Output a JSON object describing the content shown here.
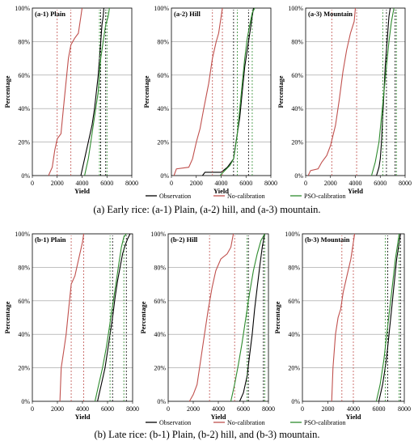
{
  "figure": {
    "caption_a": "(a) Early rice: (a-1) Plain, (a-2) hill, and (a-3) mountain.",
    "caption_b": "(b) Late rice: (b-1) Plain, (b-2) hill, and (b-3) mountain.",
    "legend": [
      {
        "label": "Observation",
        "color": "#000000"
      },
      {
        "label": "No-calibration",
        "color": "#c0504d"
      },
      {
        "label": "PSO-calibration",
        "color": "#2e8b2e"
      }
    ]
  },
  "chart_data": [
    {
      "type": "line",
      "title": "(a-1) Plain",
      "xlabel": "Yield",
      "ylabel": "Percentage",
      "xlim": [
        0,
        8000
      ],
      "ylim": [
        0,
        100
      ],
      "xticks": [
        "0",
        "2000",
        "4000",
        "6000",
        "8000"
      ],
      "yticks": [
        "0%",
        "20%",
        "40%",
        "60%",
        "80%",
        "100%"
      ],
      "series": [
        {
          "name": "Observation",
          "points": [
            [
              3900,
              0
            ],
            [
              4200,
              10
            ],
            [
              4500,
              20
            ],
            [
              4800,
              30
            ],
            [
              5000,
              40
            ],
            [
              5150,
              50
            ],
            [
              5300,
              60
            ],
            [
              5400,
              70
            ],
            [
              5500,
              80
            ],
            [
              5600,
              90
            ],
            [
              5700,
              95
            ],
            [
              5750,
              100
            ]
          ],
          "p20": 5500,
          "p80": 5900
        },
        {
          "name": "No-calibration",
          "points": [
            [
              1300,
              0
            ],
            [
              1600,
              5
            ],
            [
              1800,
              15
            ],
            [
              2000,
              22
            ],
            [
              2300,
              25
            ],
            [
              2500,
              40
            ],
            [
              2700,
              55
            ],
            [
              2900,
              70
            ],
            [
              3100,
              78
            ],
            [
              3400,
              82
            ],
            [
              3700,
              85
            ],
            [
              3900,
              95
            ],
            [
              4000,
              100
            ]
          ],
          "p20": 2000,
          "p80": 3100
        },
        {
          "name": "PSO-calibration",
          "points": [
            [
              4200,
              0
            ],
            [
              4500,
              10
            ],
            [
              4700,
              20
            ],
            [
              4900,
              30
            ],
            [
              5100,
              40
            ],
            [
              5300,
              50
            ],
            [
              5400,
              60
            ],
            [
              5500,
              70
            ],
            [
              5700,
              80
            ],
            [
              5900,
              90
            ],
            [
              6100,
              95
            ],
            [
              6200,
              100
            ]
          ],
          "p20": 5400,
          "p80": 6000
        }
      ]
    },
    {
      "type": "line",
      "title": "(a-2) Hill",
      "xlabel": "Yield",
      "ylabel": "Percentage",
      "xlim": [
        0,
        8000
      ],
      "ylim": [
        0,
        100
      ],
      "xticks": [
        "0",
        "2000",
        "4000",
        "6000",
        "8000"
      ],
      "yticks": [
        "0%",
        "20%",
        "40%",
        "60%",
        "80%",
        "100%"
      ],
      "series": [
        {
          "name": "Observation",
          "points": [
            [
              2500,
              0
            ],
            [
              2700,
              2
            ],
            [
              4000,
              2
            ],
            [
              4500,
              5
            ],
            [
              5000,
              10
            ],
            [
              5200,
              20
            ],
            [
              5500,
              35
            ],
            [
              5700,
              50
            ],
            [
              5900,
              65
            ],
            [
              6100,
              75
            ],
            [
              6300,
              85
            ],
            [
              6500,
              95
            ],
            [
              6600,
              100
            ]
          ],
          "p20": 5000,
          "p80": 6200
        },
        {
          "name": "No-calibration",
          "points": [
            [
              200,
              0
            ],
            [
              400,
              4
            ],
            [
              1400,
              5
            ],
            [
              1700,
              10
            ],
            [
              2000,
              20
            ],
            [
              2300,
              28
            ],
            [
              2600,
              40
            ],
            [
              3000,
              55
            ],
            [
              3300,
              70
            ],
            [
              3600,
              80
            ],
            [
              3800,
              85
            ],
            [
              4000,
              95
            ],
            [
              4100,
              100
            ]
          ],
          "p20": 3300,
          "p80": 4100
        },
        {
          "name": "PSO-calibration",
          "points": [
            [
              3900,
              0
            ],
            [
              4300,
              3
            ],
            [
              4700,
              6
            ],
            [
              5000,
              10
            ],
            [
              5300,
              25
            ],
            [
              5500,
              40
            ],
            [
              5700,
              55
            ],
            [
              5900,
              70
            ],
            [
              6100,
              82
            ],
            [
              6300,
              90
            ],
            [
              6500,
              97
            ],
            [
              6700,
              100
            ]
          ],
          "p20": 5300,
          "p80": 6500
        }
      ]
    },
    {
      "type": "line",
      "title": "(a-3) Mountain",
      "xlabel": "Yield",
      "ylabel": "Percentage",
      "xlim": [
        0,
        8000
      ],
      "ylim": [
        0,
        100
      ],
      "xticks": [
        "0",
        "2000",
        "4000",
        "6000",
        "8000"
      ],
      "yticks": [
        "0%",
        "20%",
        "40%",
        "60%",
        "80%",
        "100%"
      ],
      "series": [
        {
          "name": "Observation",
          "points": [
            [
              5700,
              0
            ],
            [
              5900,
              5
            ],
            [
              6000,
              10
            ],
            [
              6100,
              20
            ],
            [
              6200,
              35
            ],
            [
              6300,
              50
            ],
            [
              6400,
              65
            ],
            [
              6500,
              75
            ],
            [
              6600,
              85
            ],
            [
              6700,
              95
            ],
            [
              6800,
              100
            ]
          ],
          "p20": 6500,
          "p80": 7200
        },
        {
          "name": "No-calibration",
          "points": [
            [
              200,
              0
            ],
            [
              400,
              3
            ],
            [
              1000,
              4
            ],
            [
              1300,
              8
            ],
            [
              1700,
              12
            ],
            [
              2000,
              18
            ],
            [
              2400,
              30
            ],
            [
              2700,
              45
            ],
            [
              3000,
              62
            ],
            [
              3300,
              75
            ],
            [
              3600,
              85
            ],
            [
              3900,
              92
            ],
            [
              4000,
              100
            ]
          ],
          "p20": 2100,
          "p80": 4100
        },
        {
          "name": "PSO-calibration",
          "points": [
            [
              5300,
              0
            ],
            [
              5600,
              8
            ],
            [
              5900,
              20
            ],
            [
              6100,
              35
            ],
            [
              6300,
              50
            ],
            [
              6500,
              65
            ],
            [
              6700,
              80
            ],
            [
              6900,
              92
            ],
            [
              7100,
              100
            ]
          ],
          "p20": 6200,
          "p80": 7300
        }
      ]
    },
    {
      "type": "line",
      "title": "(b-1) Plain",
      "xlabel": "Yield",
      "ylabel": "Percentage",
      "xlim": [
        0,
        8000
      ],
      "ylim": [
        0,
        100
      ],
      "xticks": [
        "0",
        "2000",
        "4000",
        "6000",
        "8000"
      ],
      "yticks": [
        "0%",
        "20%",
        "40%",
        "60%",
        "80%",
        "100%"
      ],
      "series": [
        {
          "name": "Observation",
          "points": [
            [
              5200,
              0
            ],
            [
              5500,
              10
            ],
            [
              5800,
              20
            ],
            [
              6100,
              35
            ],
            [
              6400,
              50
            ],
            [
              6600,
              62
            ],
            [
              6800,
              72
            ],
            [
              7000,
              80
            ],
            [
              7200,
              88
            ],
            [
              7400,
              93
            ],
            [
              7600,
              97
            ],
            [
              7800,
              100
            ]
          ],
          "p20": 6400,
          "p80": 7500
        },
        {
          "name": "No-calibration",
          "points": [
            [
              2200,
              0
            ],
            [
              2300,
              20
            ],
            [
              2500,
              30
            ],
            [
              2700,
              40
            ],
            [
              2900,
              55
            ],
            [
              3100,
              70
            ],
            [
              3400,
              75
            ],
            [
              3700,
              85
            ],
            [
              4000,
              95
            ],
            [
              4100,
              100
            ]
          ],
          "p20": 3100,
          "p80": 4100
        },
        {
          "name": "PSO-calibration",
          "points": [
            [
              5000,
              0
            ],
            [
              5300,
              10
            ],
            [
              5600,
              20
            ],
            [
              5900,
              32
            ],
            [
              6100,
              42
            ],
            [
              6300,
              52
            ],
            [
              6500,
              62
            ],
            [
              6700,
              72
            ],
            [
              6900,
              82
            ],
            [
              7100,
              92
            ],
            [
              7300,
              98
            ],
            [
              7500,
              100
            ]
          ],
          "p20": 6200,
          "p80": 7300
        }
      ]
    },
    {
      "type": "line",
      "title": "(b-2) Hill",
      "xlabel": "Yield",
      "ylabel": "Percentage",
      "xlim": [
        0,
        8000
      ],
      "ylim": [
        0,
        100
      ],
      "xticks": [
        "0",
        "2000",
        "4000",
        "6000",
        "8000"
      ],
      "yticks": [
        "0%",
        "20%",
        "40%",
        "60%",
        "80%",
        "100%"
      ],
      "series": [
        {
          "name": "Observation",
          "points": [
            [
              5700,
              0
            ],
            [
              6000,
              5
            ],
            [
              6300,
              15
            ],
            [
              6500,
              28
            ],
            [
              6700,
              40
            ],
            [
              6900,
              55
            ],
            [
              7100,
              68
            ],
            [
              7300,
              80
            ],
            [
              7500,
              92
            ],
            [
              7700,
              100
            ]
          ],
          "p20": 6400,
          "p80": 7600
        },
        {
          "name": "No-calibration",
          "points": [
            [
              1700,
              0
            ],
            [
              2000,
              4
            ],
            [
              2300,
              10
            ],
            [
              2600,
              25
            ],
            [
              2900,
              40
            ],
            [
              3200,
              55
            ],
            [
              3500,
              68
            ],
            [
              3800,
              78
            ],
            [
              4200,
              85
            ],
            [
              4700,
              88
            ],
            [
              5000,
              92
            ],
            [
              5200,
              100
            ]
          ],
          "p20": 3300,
          "p80": 5300
        },
        {
          "name": "PSO-calibration",
          "points": [
            [
              5000,
              0
            ],
            [
              5300,
              10
            ],
            [
              5600,
              22
            ],
            [
              5900,
              35
            ],
            [
              6200,
              50
            ],
            [
              6500,
              65
            ],
            [
              6800,
              78
            ],
            [
              7100,
              88
            ],
            [
              7400,
              96
            ],
            [
              7700,
              100
            ]
          ],
          "p20": 6300,
          "p80": 7700
        }
      ]
    },
    {
      "type": "line",
      "title": "(b-3) Mountain",
      "xlabel": "Yield",
      "ylabel": "Percentage",
      "xlim": [
        0,
        8000
      ],
      "ylim": [
        0,
        100
      ],
      "xticks": [
        "0",
        "2000",
        "4000",
        "6000",
        "8000"
      ],
      "yticks": [
        "0%",
        "20%",
        "40%",
        "60%",
        "80%",
        "100%"
      ],
      "series": [
        {
          "name": "Observation",
          "points": [
            [
              6000,
              0
            ],
            [
              6300,
              10
            ],
            [
              6600,
              25
            ],
            [
              6800,
              40
            ],
            [
              7000,
              55
            ],
            [
              7200,
              70
            ],
            [
              7400,
              85
            ],
            [
              7600,
              95
            ],
            [
              7700,
              100
            ]
          ],
          "p20": 6700,
          "p80": 7700
        },
        {
          "name": "No-calibration",
          "points": [
            [
              2300,
              0
            ],
            [
              2400,
              20
            ],
            [
              2600,
              40
            ],
            [
              2800,
              50
            ],
            [
              3000,
              55
            ],
            [
              3200,
              65
            ],
            [
              3500,
              75
            ],
            [
              3800,
              85
            ],
            [
              4000,
              95
            ],
            [
              4100,
              100
            ]
          ],
          "p20": 3100,
          "p80": 4000
        },
        {
          "name": "PSO-calibration",
          "points": [
            [
              5800,
              0
            ],
            [
              6100,
              10
            ],
            [
              6400,
              25
            ],
            [
              6700,
              45
            ],
            [
              7000,
              65
            ],
            [
              7300,
              85
            ],
            [
              7500,
              95
            ],
            [
              7600,
              100
            ]
          ],
          "p20": 6500,
          "p80": 7600
        }
      ]
    }
  ]
}
